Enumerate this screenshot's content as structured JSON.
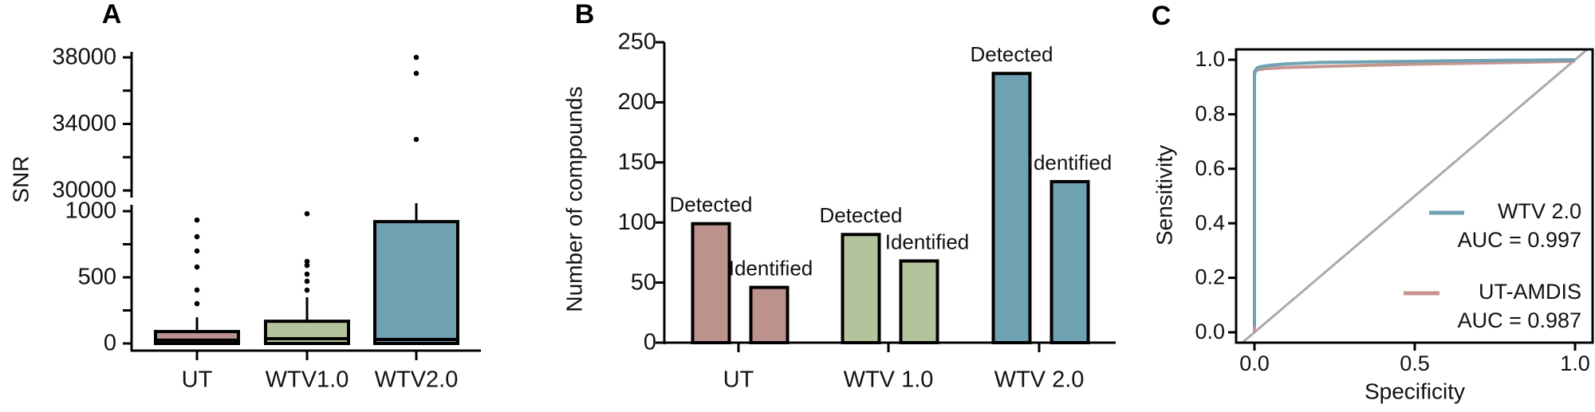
{
  "chart_data": [
    {
      "panel": "A",
      "type": "box",
      "ylabel": "SNR",
      "y_axis_break": true,
      "y_ticks_lower": [
        0,
        500,
        1000
      ],
      "y_ticks_upper": [
        30000,
        34000,
        38000
      ],
      "ylim_lower": [
        0,
        1000
      ],
      "ylim_upper": [
        30000,
        38000
      ],
      "categories": [
        "UT",
        "WTV1.0",
        "WTV2.0"
      ],
      "colors": [
        "#bc928d",
        "#b3c39b",
        "#6fa2b3"
      ],
      "boxes": [
        {
          "q1": 0,
          "median": 25,
          "q3": 90,
          "whisker_low": 0,
          "whisker_high": 198,
          "outliers": [
            301,
            404,
            578,
            699,
            807,
            933
          ]
        },
        {
          "q1": 0,
          "median": 36,
          "q3": 168,
          "whisker_low": 0,
          "whisker_high": 349,
          "outliers": [
            403,
            470,
            524,
            590,
            620,
            981
          ]
        },
        {
          "q1": 0,
          "median": 30,
          "q3": 921,
          "whisker_low": 0,
          "whisker_high": 1060,
          "outliers": [
            33070,
            37040,
            38000
          ]
        }
      ]
    },
    {
      "panel": "B",
      "type": "bar",
      "ylabel": "Number of compounds",
      "ylim": [
        0,
        250
      ],
      "y_ticks": [
        0,
        50,
        100,
        150,
        200,
        250
      ],
      "categories": [
        "UT",
        "WTV 1.0",
        "WTV 2.0"
      ],
      "colors": [
        "#bc928d",
        "#b3c39b",
        "#6fa2b3"
      ],
      "series": [
        {
          "name": "Detected",
          "values": [
            99,
            90,
            224
          ]
        },
        {
          "name": "Identified",
          "values": [
            46,
            68,
            134
          ]
        }
      ]
    },
    {
      "panel": "C",
      "type": "line",
      "xlabel": "Specificity",
      "ylabel": "Sensitivity",
      "x_ticks": [
        "0.0",
        "0.5",
        "1.0"
      ],
      "y_ticks": [
        "0.0",
        "0.2",
        "0.4",
        "0.6",
        "0.8",
        "1.0"
      ],
      "xlim": [
        -0.057,
        1.055
      ],
      "ylim": [
        -0.038,
        1.038
      ],
      "legend_position": "bottom-right",
      "reference_line": {
        "color": "#aaaaaa"
      },
      "series": [
        {
          "name": "UT-AMDIS",
          "auc_label": "AUC = 0.987",
          "color": "#c4968f",
          "x": [
            0,
            0.0,
            0.01,
            0.03,
            0.1,
            0.3,
            0.5,
            0.8,
            1.0
          ],
          "y": [
            0,
            0.955,
            0.963,
            0.967,
            0.972,
            0.978,
            0.984,
            0.99,
            0.995
          ]
        },
        {
          "name": "WTV 2.0",
          "auc_label": "AUC = 0.997",
          "color": "#6fa2b3",
          "x": [
            0.0,
            0.0,
            0.002,
            0.008,
            0.02,
            0.05,
            0.1,
            0.2,
            0.4,
            0.6,
            0.8,
            1.0
          ],
          "y": [
            0.02,
            0.94,
            0.96,
            0.97,
            0.975,
            0.98,
            0.985,
            0.99,
            0.993,
            0.996,
            0.998,
            1.0
          ]
        }
      ]
    }
  ]
}
